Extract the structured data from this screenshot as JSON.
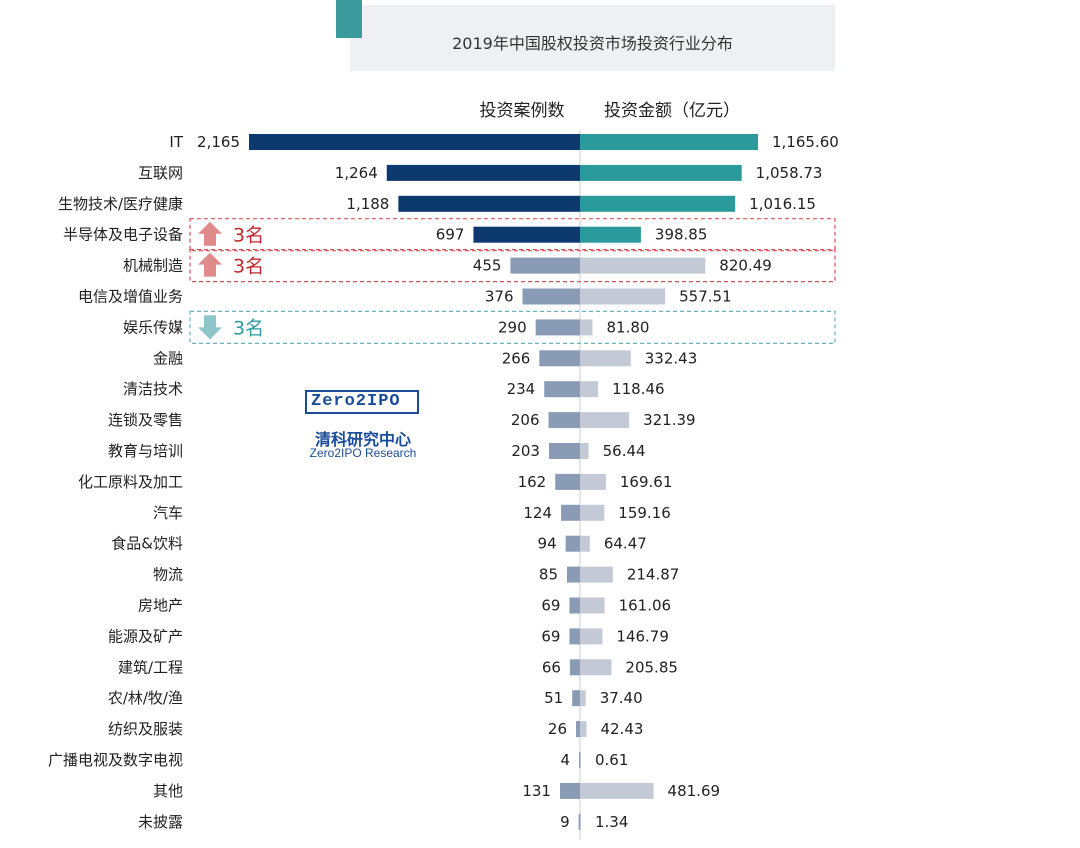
{
  "chart_data": {
    "type": "bar",
    "title": "2019年中国股权投资市场投资行业分布",
    "left_series_label": "投资案例数",
    "right_series_label": "投资金额（亿元）",
    "categories": [
      "IT",
      "互联网",
      "生物技术/医疗健康",
      "半导体及电子设备",
      "机械制造",
      "电信及增值业务",
      "娱乐传媒",
      "金融",
      "清洁技术",
      "连锁及零售",
      "教育与培训",
      "化工原料及加工",
      "汽车",
      "食品&饮料",
      "物流",
      "房地产",
      "能源及矿产",
      "建筑/工程",
      "农/林/牧/渔",
      "纺织及服装",
      "广播电视及数字电视",
      "其他",
      "未披露"
    ],
    "series": [
      {
        "name": "投资案例数",
        "values": [
          2165,
          1264,
          1188,
          697,
          455,
          376,
          290,
          266,
          234,
          206,
          203,
          162,
          124,
          94,
          85,
          69,
          69,
          66,
          51,
          26,
          4,
          131,
          9
        ],
        "labels": [
          "2,165",
          "1,264",
          "1,188",
          "697",
          "455",
          "376",
          "290",
          "266",
          "234",
          "206",
          "203",
          "162",
          "124",
          "94",
          "85",
          "69",
          "69",
          "66",
          "51",
          "26",
          "4",
          "131",
          "9"
        ]
      },
      {
        "name": "投资金额（亿元）",
        "values": [
          1165.6,
          1058.73,
          1016.15,
          398.85,
          820.49,
          557.51,
          81.8,
          332.43,
          118.46,
          321.39,
          56.44,
          169.61,
          159.16,
          64.47,
          214.87,
          161.06,
          146.79,
          205.85,
          37.4,
          42.43,
          0.61,
          481.69,
          1.34
        ],
        "labels": [
          "1,165.60",
          "1,058.73",
          "1,016.15",
          "398.85",
          "820.49",
          "557.51",
          "81.80",
          "332.43",
          "118.46",
          "321.39",
          "56.44",
          "169.61",
          "159.16",
          "64.47",
          "214.87",
          "161.06",
          "146.79",
          "205.85",
          "37.40",
          "42.43",
          "0.61",
          "481.69",
          "1.34"
        ]
      }
    ],
    "highlighted_top_count": 4,
    "annotations": [
      {
        "category": "半导体及电子设备",
        "direction": "up",
        "text": "3名"
      },
      {
        "category": "机械制造",
        "direction": "up",
        "text": "3名"
      },
      {
        "category": "娱乐传媒",
        "direction": "down",
        "text": "3名"
      }
    ],
    "colors": {
      "left_top": "#0d3a6e",
      "right_top": "#2a9a9c",
      "left_rest": "#8a9bb5",
      "right_rest": "#c3cad6",
      "up_arrow": "#e08a8a",
      "down_arrow": "#8ec5c9",
      "up_text": "#c0282e",
      "down_text": "#2f9aa0",
      "up_border": "#d9545a",
      "down_border": "#6bb5c0"
    }
  },
  "logo": {
    "mark": "Zero2IPO",
    "name_cn": "清科研究中心",
    "name_en": "Zero2IPO Research"
  }
}
